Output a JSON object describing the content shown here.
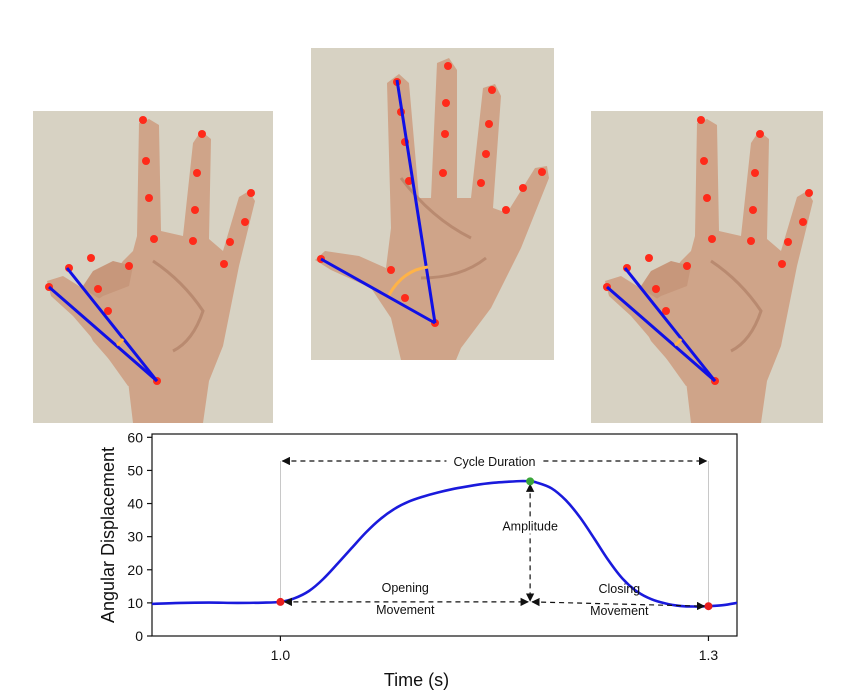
{
  "figure": {
    "photos": [
      {
        "id": "left",
        "description_name": "pinch-closed"
      },
      {
        "id": "center",
        "description_name": "pinch-open"
      },
      {
        "id": "right",
        "description_name": "pinch-closed"
      }
    ],
    "colors": {
      "background_wall": "#d7d2c3",
      "skin": "#cfa489",
      "skin_shadow": "#b98a70",
      "keypoint": "#ff2a1a",
      "angle_line": "#1010e6",
      "angle_arc": "#ffb347",
      "curve": "#1a1adc",
      "peak_marker": "#3aa63a",
      "end_marker": "#e81e1e",
      "annotation": "#111111"
    }
  },
  "chart_data": {
    "type": "line",
    "title": "",
    "xlabel": "Time (s)",
    "ylabel": "Angular Displacement",
    "xlim": [
      0.91,
      1.32
    ],
    "ylim": [
      0,
      61
    ],
    "xticks": [
      1.0,
      1.3
    ],
    "xtick_labels": [
      "1.0",
      "1.3"
    ],
    "yticks": [
      0,
      10,
      20,
      30,
      40,
      50,
      60
    ],
    "ytick_labels": [
      "0",
      "10",
      "20",
      "30",
      "40",
      "50",
      "60"
    ],
    "grid": false,
    "series": [
      {
        "name": "",
        "x": [
          0.91,
          0.93,
          0.95,
          0.97,
          0.99,
          1.0,
          1.01,
          1.02,
          1.03,
          1.04,
          1.05,
          1.06,
          1.07,
          1.08,
          1.09,
          1.1,
          1.11,
          1.12,
          1.13,
          1.14,
          1.15,
          1.16,
          1.17,
          1.175,
          1.18,
          1.19,
          1.2,
          1.21,
          1.22,
          1.23,
          1.24,
          1.25,
          1.26,
          1.27,
          1.28,
          1.29,
          1.3,
          1.31,
          1.32
        ],
        "y": [
          9.7,
          10.0,
          10.1,
          10.0,
          10.1,
          10.3,
          11.4,
          13.6,
          17.2,
          21.8,
          26.6,
          31.3,
          35.3,
          38.4,
          40.6,
          42.1,
          43.3,
          44.3,
          45.1,
          45.8,
          46.3,
          46.6,
          46.8,
          46.7,
          46.3,
          44.6,
          41.0,
          35.8,
          29.4,
          22.8,
          17.2,
          13.4,
          11.1,
          9.8,
          9.1,
          8.9,
          9.0,
          9.3,
          10.0
        ]
      }
    ],
    "markers": {
      "start": {
        "x": 1.0,
        "y": 10.3
      },
      "peak": {
        "x": 1.175,
        "y": 46.7
      },
      "end": {
        "x": 1.3,
        "y": 9.0
      }
    },
    "annotations": {
      "cycle_duration": "Cycle Duration",
      "amplitude": "Amplitude",
      "opening_line1": "Opening",
      "opening_line2": "Movement",
      "closing_line1": "Closing",
      "closing_line2": "Movement"
    }
  }
}
